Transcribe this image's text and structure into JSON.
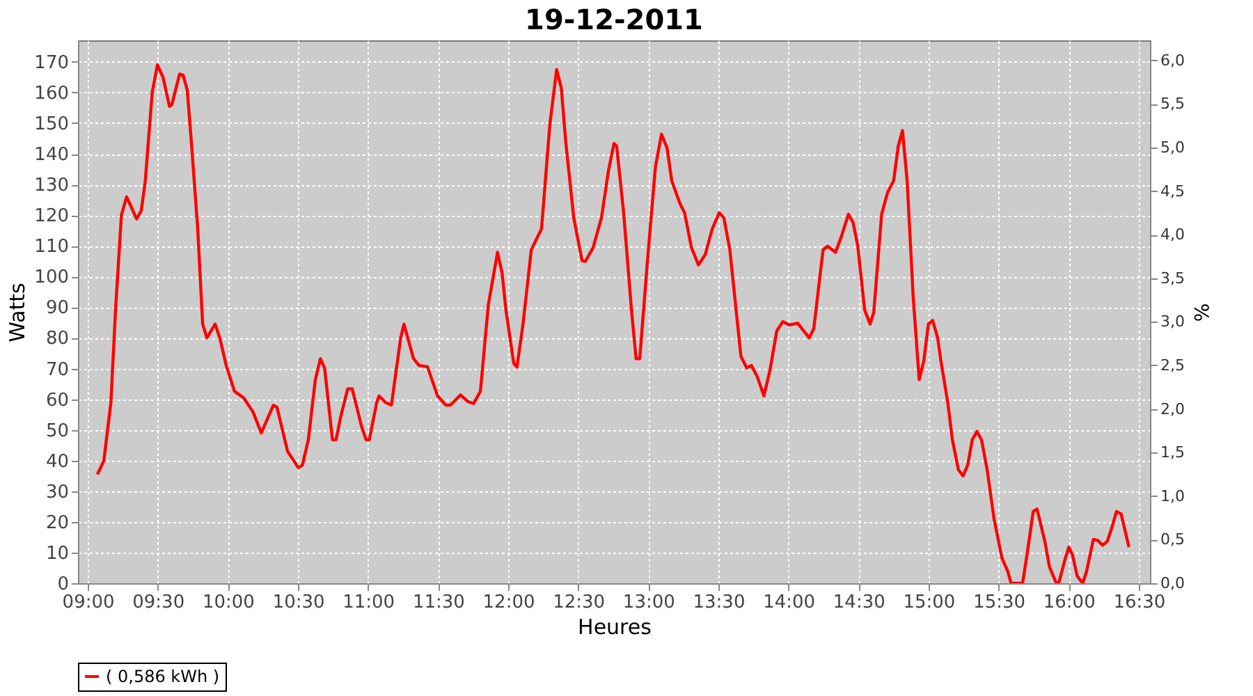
{
  "chart_data": {
    "type": "line",
    "title": "19-12-2011",
    "xlabel": "Heures",
    "ylabel": "Watts",
    "y2label": "%",
    "x": [
      9.069,
      9.115,
      9.165,
      9.198,
      9.24,
      9.277,
      9.349,
      9.382,
      9.41,
      9.46,
      9.497,
      9.537,
      9.583,
      9.6,
      9.655,
      9.68,
      9.71,
      9.74,
      9.784,
      9.82,
      9.85,
      9.909,
      9.942,
      9.988,
      10.047,
      10.113,
      10.18,
      10.238,
      10.324,
      10.35,
      10.426,
      10.502,
      10.532,
      10.574,
      10.624,
      10.66,
      10.69,
      10.746,
      10.772,
      10.805,
      10.855,
      10.887,
      10.953,
      10.986,
      11.009,
      11.062,
      11.078,
      11.127,
      11.167,
      11.233,
      11.256,
      11.325,
      11.364,
      11.424,
      11.496,
      11.555,
      11.588,
      11.66,
      11.71,
      11.753,
      11.802,
      11.858,
      11.924,
      11.957,
      11.984,
      12.04,
      12.063,
      12.106,
      12.165,
      12.205,
      12.238,
      12.297,
      12.346,
      12.379,
      12.412,
      12.468,
      12.527,
      12.55,
      12.606,
      12.666,
      12.715,
      12.755,
      12.774,
      12.824,
      12.88,
      12.913,
      12.939,
      12.995,
      13.051,
      13.094,
      13.134,
      13.167,
      13.226,
      13.259,
      13.308,
      13.358,
      13.407,
      13.456,
      13.506,
      13.539,
      13.582,
      13.661,
      13.703,
      13.736,
      13.779,
      13.825,
      13.868,
      13.917,
      13.96,
      14.007,
      14.066,
      14.148,
      14.181,
      14.247,
      14.28,
      14.336,
      14.379,
      14.428,
      14.461,
      14.494,
      14.544,
      14.583,
      14.609,
      14.665,
      14.708,
      14.751,
      14.784,
      14.814,
      14.847,
      14.89,
      14.933,
      14.966,
      14.999,
      15.029,
      15.065,
      15.088,
      15.137,
      15.17,
      15.213,
      15.246,
      15.279,
      15.312,
      15.345,
      15.378,
      15.418,
      15.467,
      15.523,
      15.566,
      15.589,
      15.671,
      15.704,
      15.747,
      15.774,
      15.83,
      15.863,
      15.912,
      15.929,
      15.972,
      16.001,
      16.028,
      16.061,
      16.1,
      16.127,
      16.176,
      16.209,
      16.242,
      16.275,
      16.308,
      16.341,
      16.374,
      16.43
    ],
    "series": [
      {
        "name": "( 0,586 kWh )",
        "color": "#ff0000",
        "values": [
          35.5,
          40,
          58.9,
          89,
          120,
          126,
          118.8,
          121.5,
          131,
          160,
          169,
          165,
          155.5,
          156,
          166,
          165.7,
          160.8,
          143.4,
          116,
          84.5,
          80,
          84.5,
          80,
          71,
          62.6,
          60.4,
          55.8,
          49,
          58,
          57.4,
          43,
          37.7,
          38.5,
          46.8,
          66.4,
          73.2,
          70.2,
          46.8,
          46.8,
          54.3,
          63.4,
          63.4,
          51.3,
          46.8,
          46.8,
          58.9,
          61.1,
          58.9,
          58.1,
          80,
          84.5,
          73.2,
          71,
          70.6,
          61.1,
          58.1,
          58.1,
          61.4,
          59.3,
          58.6,
          62.6,
          90.6,
          107.9,
          101.1,
          89.1,
          71.7,
          70.5,
          84.5,
          108.7,
          112.5,
          115.5,
          149.4,
          167.5,
          161.5,
          143.4,
          119.2,
          105.2,
          104.9,
          109.4,
          119.2,
          134.3,
          143.4,
          142.6,
          120.8,
          89.1,
          73.2,
          73.2,
          105.7,
          135.8,
          146.4,
          141.9,
          131.3,
          123.8,
          120.8,
          109.4,
          103.8,
          107.2,
          115.5,
          120.8,
          119.2,
          108.7,
          74,
          70.2,
          71,
          67.2,
          61.1,
          69.4,
          82.3,
          85.3,
          84.2,
          84.8,
          80,
          83,
          108.7,
          109.9,
          107.9,
          113.2,
          120.3,
          117.7,
          110.2,
          89.1,
          84.5,
          88.3,
          120.3,
          127.5,
          131.3,
          142.6,
          147.6,
          131.3,
          93.6,
          66.4,
          72.5,
          84.5,
          85.7,
          80,
          72.5,
          58.9,
          46.8,
          37,
          35,
          38.5,
          46.8,
          49.5,
          46.8,
          37,
          21.1,
          8.3,
          3.8,
          0,
          0,
          9.8,
          23.4,
          24.2,
          13.6,
          5.3,
          0,
          0,
          7.5,
          11.8,
          9.1,
          2.3,
          0,
          3.8,
          14.3,
          13.9,
          12.4,
          13.6,
          18.1,
          23.4,
          22.6,
          11.8
        ]
      }
    ],
    "xlim": [
      8.93,
      16.58
    ],
    "xticks": [
      {
        "value": 9,
        "label": "09:00"
      },
      {
        "value": 9.5,
        "label": "09:30"
      },
      {
        "value": 10,
        "label": "10:00"
      },
      {
        "value": 10.5,
        "label": "10:30"
      },
      {
        "value": 11,
        "label": "11:00"
      },
      {
        "value": 11.5,
        "label": "11:30"
      },
      {
        "value": 12,
        "label": "12:00"
      },
      {
        "value": 12.5,
        "label": "12:30"
      },
      {
        "value": 13,
        "label": "13:00"
      },
      {
        "value": 13.5,
        "label": "13:30"
      },
      {
        "value": 14,
        "label": "14:00"
      },
      {
        "value": 14.5,
        "label": "14:30"
      },
      {
        "value": 15,
        "label": "15:00"
      },
      {
        "value": 15.5,
        "label": "15:30"
      },
      {
        "value": 16,
        "label": "16:00"
      },
      {
        "value": 16.5,
        "label": "16:30"
      }
    ],
    "ylim": [
      0,
      177
    ],
    "yticks": [
      0,
      10,
      20,
      30,
      40,
      50,
      60,
      70,
      80,
      90,
      100,
      110,
      120,
      130,
      140,
      150,
      160,
      170
    ],
    "y2lim": [
      0,
      6.23
    ],
    "y2ticks": [
      {
        "value": 0,
        "label": "0,0"
      },
      {
        "value": 0.5,
        "label": "0,5"
      },
      {
        "value": 1,
        "label": "1,0"
      },
      {
        "value": 1.5,
        "label": "1,5"
      },
      {
        "value": 2,
        "label": "2,0"
      },
      {
        "value": 2.5,
        "label": "2,5"
      },
      {
        "value": 3,
        "label": "3,0"
      },
      {
        "value": 3.5,
        "label": "3,5"
      },
      {
        "value": 4,
        "label": "4,0"
      },
      {
        "value": 4.5,
        "label": "4,5"
      },
      {
        "value": 5,
        "label": "5,0"
      },
      {
        "value": 5.5,
        "label": "5,5"
      },
      {
        "value": 6,
        "label": "6,0"
      }
    ],
    "grid": true,
    "legend": "bottom",
    "line_style": "solid"
  }
}
